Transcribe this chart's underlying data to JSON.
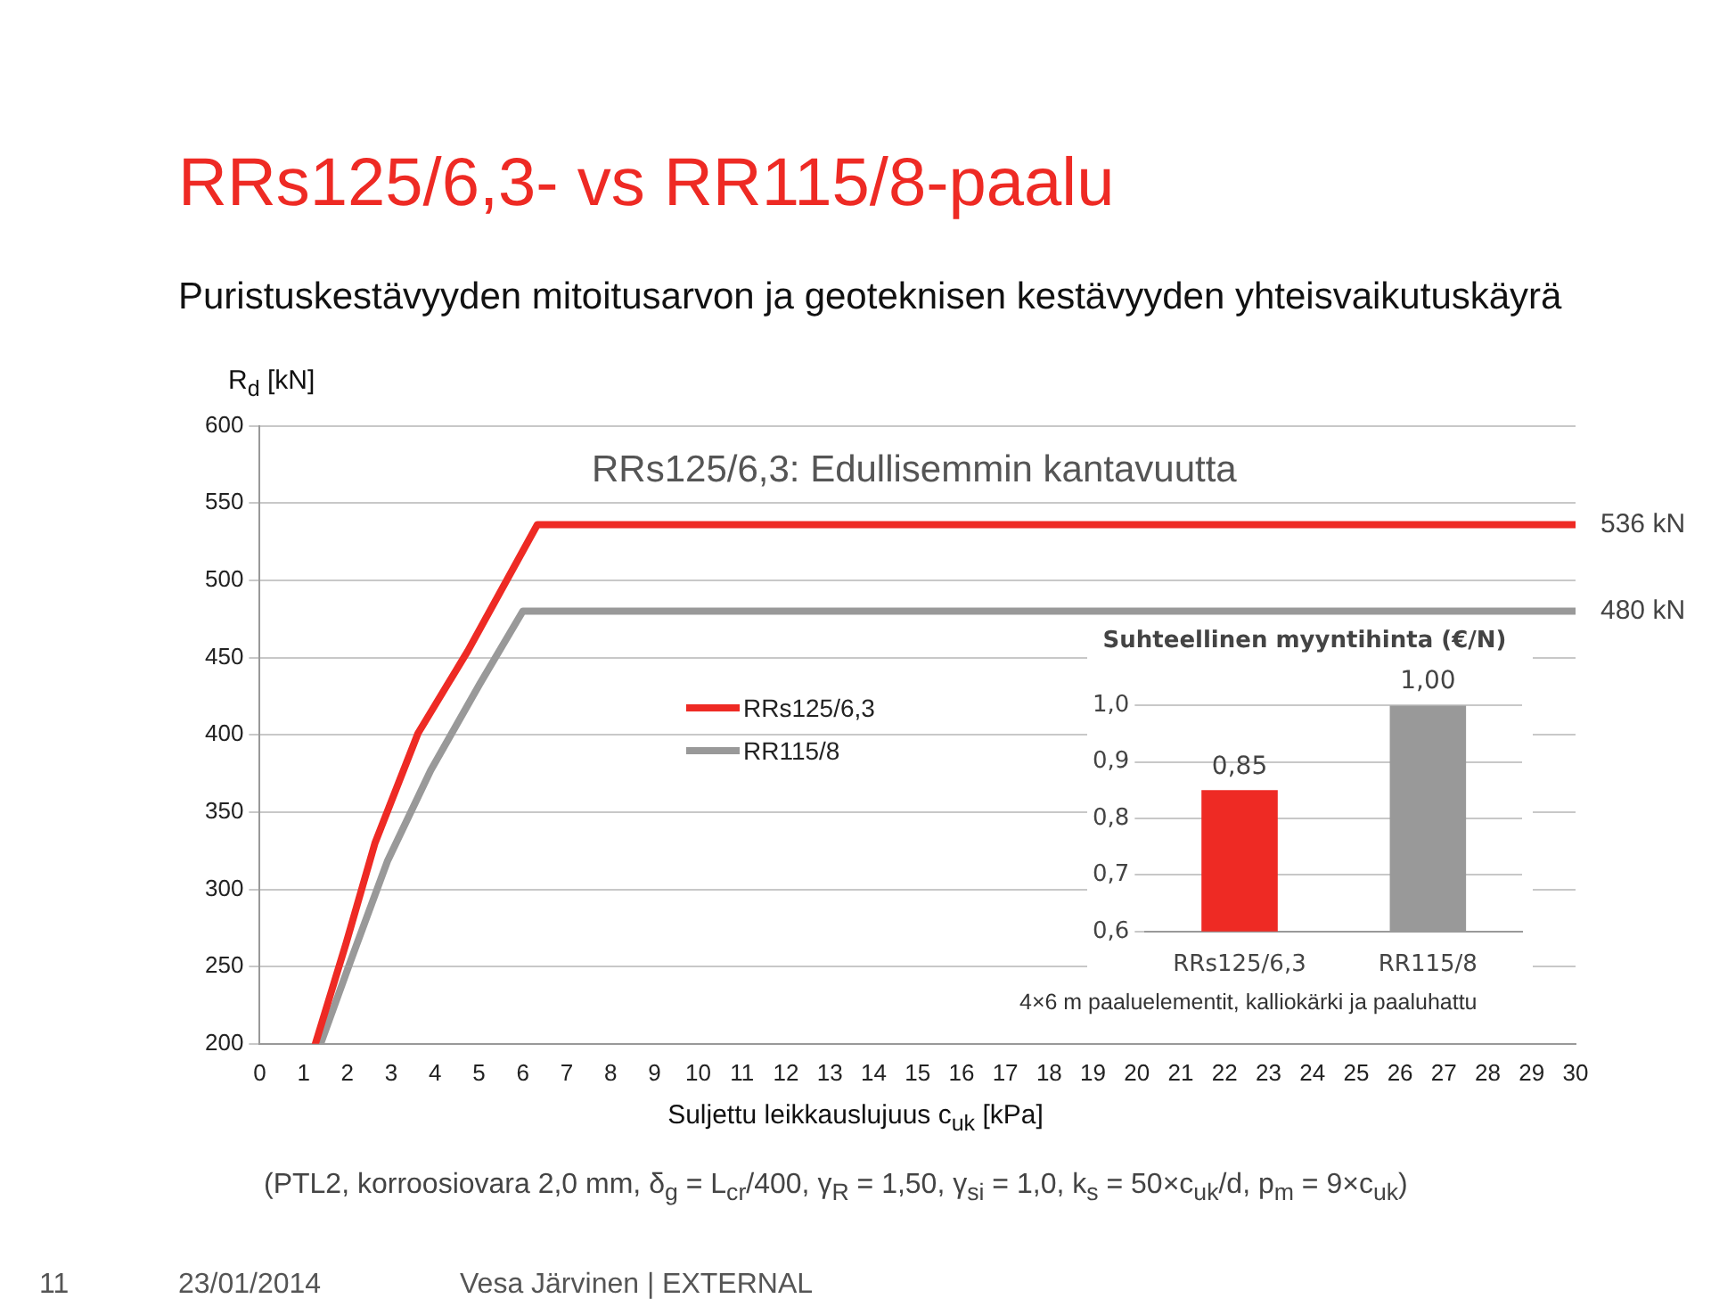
{
  "chart_data": [
    {
      "type": "line",
      "title": "RRs125/6,3- vs RR115/8-paalu",
      "subtitle": "Puristuskestävyyden mitoitusarvon ja geoteknisen kestävyyden yhteisvaikutuskäyrä",
      "xlabel": "Suljettu leikkauslujuus c$_{uk}$ [kPa]",
      "ylabel": "R$_{d}$ [kN]",
      "series": [
        {
          "name": "RRs125/6,3",
          "color": "#ee2a24",
          "x": [
            1.27,
            1.97,
            2.63,
            3.61,
            4.74,
            6.33,
            30
          ],
          "values": [
            200,
            265,
            330,
            401,
            454,
            536,
            536
          ]
        },
        {
          "name": "RR115/8",
          "color": "#999999",
          "x": [
            1.39,
            2.04,
            2.91,
            3.9,
            5.02,
            6.0,
            30
          ],
          "values": [
            200,
            251,
            318,
            377,
            433,
            480,
            480
          ]
        }
      ],
      "xlim": [
        0,
        30
      ],
      "xticks": [
        0,
        1,
        2,
        3,
        4,
        5,
        6,
        7,
        8,
        9,
        10,
        11,
        12,
        13,
        14,
        15,
        16,
        17,
        18,
        19,
        20,
        21,
        22,
        23,
        24,
        25,
        26,
        27,
        28,
        29,
        30
      ],
      "ylim": [
        200,
        600
      ],
      "yticks": [
        200,
        250,
        300,
        350,
        400,
        450,
        500,
        550,
        600
      ],
      "grid": "y",
      "legend": "left",
      "marker": "none",
      "annotations": [
        {
          "text": "536 kN",
          "x": 30,
          "y": 536
        },
        {
          "text": "480 kN",
          "x": 30,
          "y": 480
        },
        "RRs125/6,3: Edullisemmin kantavuutta",
        "4×6 m paaluelementit, kalliokärki ja paaluhattu",
        "(PTL2, korroosiovara 2,0 mm, δ$_{g}$ = L$_{cr}$/400, γ$_{R}$ = 1,50, γ$_{si}$ = 1,0, k$_{s}$ = 50×c$_{uk}$/d, p$_{m}$ = 9×c$_{uk}$)",
        "11",
        "23/01/2014",
        "Vesa Järvinen | EXTERNAL"
      ]
    },
    {
      "type": "bar",
      "title": "Suhteellinen myyntihinta (€/N)",
      "categories": [
        "RRs125/6,3",
        "RR115/8"
      ],
      "values": [
        0.85,
        1.0
      ],
      "colors": [
        "#ee2a24",
        "#999999"
      ],
      "value_labels": [
        "0,85",
        "1,00"
      ],
      "ylim": [
        0.6,
        1.0
      ],
      "yticks": [
        {
          "value": 0.6,
          "label": "0,6"
        },
        {
          "value": 0.7,
          "label": "0,7"
        },
        {
          "value": 0.8,
          "label": "0,8"
        },
        {
          "value": 0.9,
          "label": "0,9"
        },
        {
          "value": 1.0,
          "label": "1,0"
        }
      ],
      "grid": "y"
    }
  ]
}
